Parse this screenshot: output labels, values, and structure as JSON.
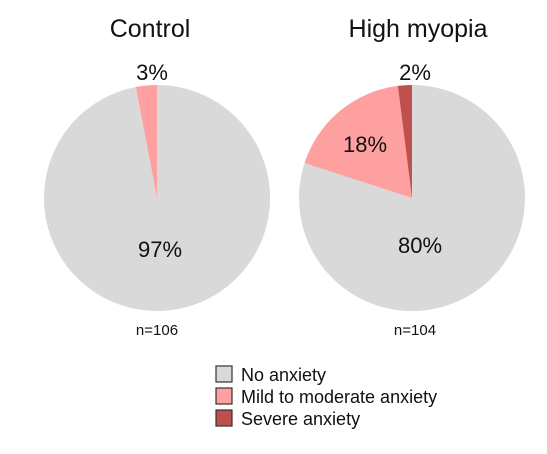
{
  "chart_data": [
    {
      "type": "pie",
      "title": "Control",
      "n_label": "n=106",
      "slices": [
        {
          "name": "No anxiety",
          "value": 97,
          "label": "97%"
        },
        {
          "name": "Mild to moderate anxiety",
          "value": 3,
          "label": "3%"
        }
      ]
    },
    {
      "type": "pie",
      "title": "High myopia",
      "n_label": "n=104",
      "slices": [
        {
          "name": "No anxiety",
          "value": 80,
          "label": "80%"
        },
        {
          "name": "Mild to moderate anxiety",
          "value": 18,
          "label": "18%"
        },
        {
          "name": "Severe anxiety",
          "value": 2,
          "label": "2%"
        }
      ]
    }
  ],
  "legend": {
    "placement": "bottom-right",
    "items": [
      {
        "label": "No anxiety",
        "color": "#d9d9d9"
      },
      {
        "label": "Mild to moderate anxiety",
        "color": "#ffa0a0"
      },
      {
        "label": "Severe anxiety",
        "color": "#c0504d"
      }
    ]
  }
}
